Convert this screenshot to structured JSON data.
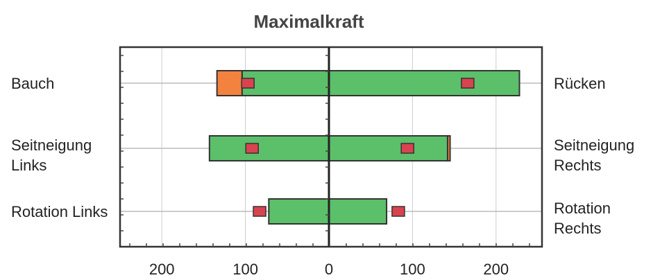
{
  "chart_data": {
    "type": "bar",
    "orientation": "horizontal",
    "title": "Maximalkraft",
    "categories": [
      "Bauch",
      "Seitneigung Links",
      "Rotation Links"
    ],
    "categories_right": [
      "Rücken",
      "Seitneigung Rechts",
      "Rotation Rechts"
    ],
    "series": [
      {
        "color": "#5cbf6a",
        "values": [
          -104,
          -143,
          -72
        ]
      },
      {
        "color": "#f4823f",
        "values": [
          -30,
          null,
          null
        ],
        "stack_on": 0
      },
      {
        "color": "#5cbf6a",
        "values": [
          228,
          142,
          69
        ]
      },
      {
        "color": "#f4823f",
        "values": [
          null,
          3,
          null
        ],
        "stack_on": 2
      },
      {
        "color": "#d9434f",
        "values": [
          -97,
          -92,
          -83
        ],
        "marker": true
      },
      {
        "color": "#d9434f",
        "values": [
          166,
          94,
          83
        ],
        "marker": true
      }
    ],
    "xlim": [
      -250,
      255
    ],
    "xticks": [
      {
        "value": -200,
        "label": "200"
      },
      {
        "value": -100,
        "label": "100"
      },
      0,
      100,
      {
        "value": 200,
        "label": "200"
      }
    ],
    "grid": true
  }
}
